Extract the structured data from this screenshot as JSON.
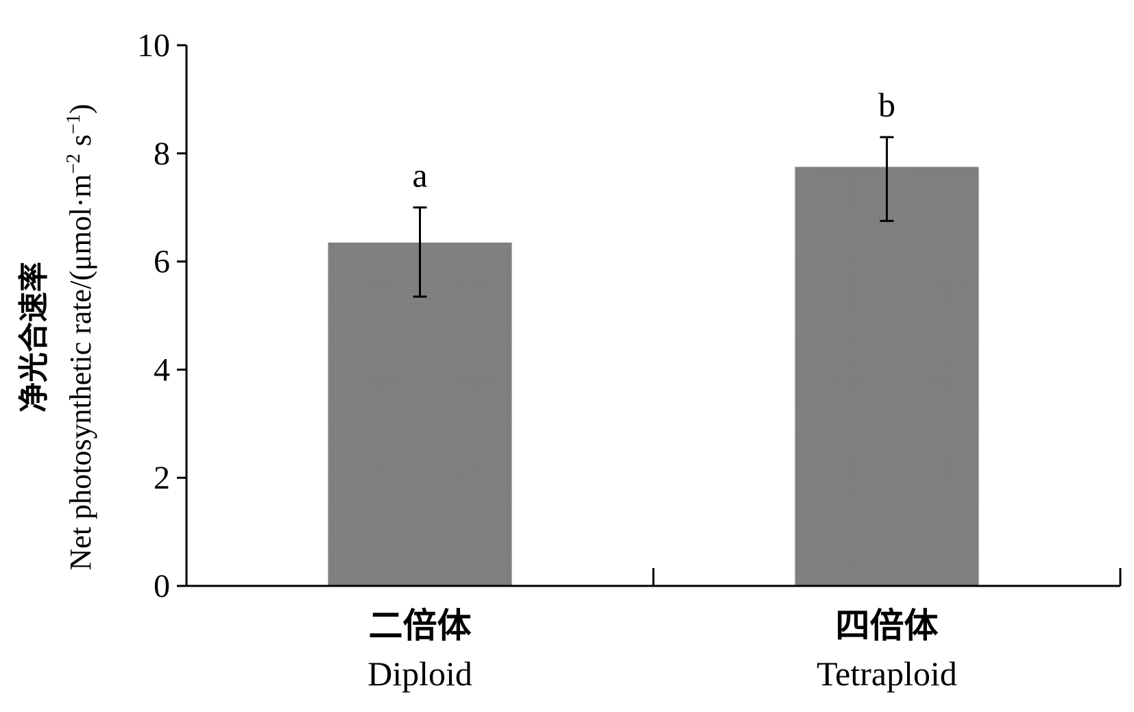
{
  "chart_data": {
    "type": "bar",
    "ylabel_zh": "净光合速率",
    "ylabel_en": "Net photosynthetic rate/(μmol·m",
    "ylabel_en_sup1": "−2",
    "ylabel_en_mid": " s",
    "ylabel_en_sup2": "−1",
    "ylabel_en_end": ")",
    "ylim": [
      0,
      10
    ],
    "yticks": [
      0,
      2,
      4,
      6,
      8,
      10
    ],
    "grid": false,
    "categories": [
      {
        "zh": "二倍体",
        "en": "Diploid"
      },
      {
        "zh": "四倍体",
        "en": "Tetraploid"
      }
    ],
    "values": [
      6.35,
      7.75
    ],
    "error_low": [
      5.35,
      6.75
    ],
    "error_high": [
      7.0,
      8.3
    ],
    "significance_labels": [
      "a",
      "b"
    ],
    "bar_color": "#7f7f7f"
  }
}
